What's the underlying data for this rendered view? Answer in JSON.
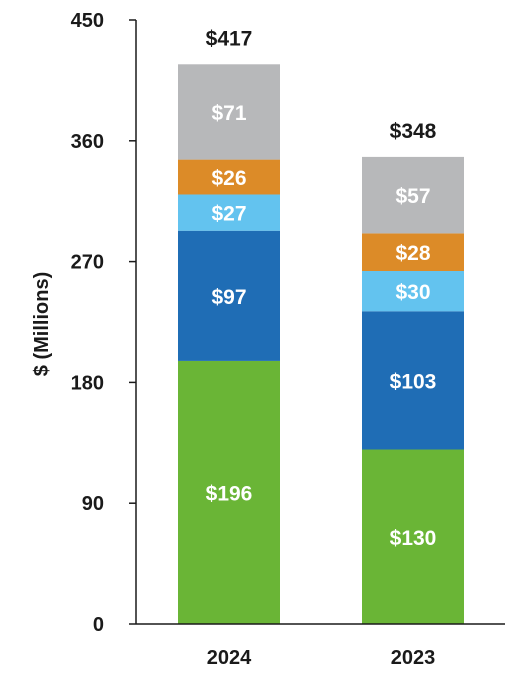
{
  "chart_data": {
    "type": "bar",
    "stacked": true,
    "categories": [
      "2024",
      "2023"
    ],
    "series": [
      {
        "values": [
          196,
          130
        ],
        "labels": [
          "$196",
          "$130"
        ],
        "color": "#6ab536"
      },
      {
        "values": [
          97,
          103
        ],
        "labels": [
          "$97",
          "$103"
        ],
        "color": "#1f6db5"
      },
      {
        "values": [
          27,
          30
        ],
        "labels": [
          "$27",
          "$30"
        ],
        "color": "#63c3ef"
      },
      {
        "values": [
          26,
          28
        ],
        "labels": [
          "$26",
          "$28"
        ],
        "color": "#dc8b28"
      },
      {
        "values": [
          71,
          57
        ],
        "labels": [
          "$71",
          "$57"
        ],
        "color": "#b7b8ba"
      }
    ],
    "totals": [
      "$417",
      "$348"
    ],
    "ylabel": "$ (Millions)",
    "ylim": [
      0,
      450
    ],
    "yticks": [
      "0",
      "90",
      "180",
      "270",
      "360",
      "450"
    ],
    "grid": false,
    "legend": "none"
  }
}
